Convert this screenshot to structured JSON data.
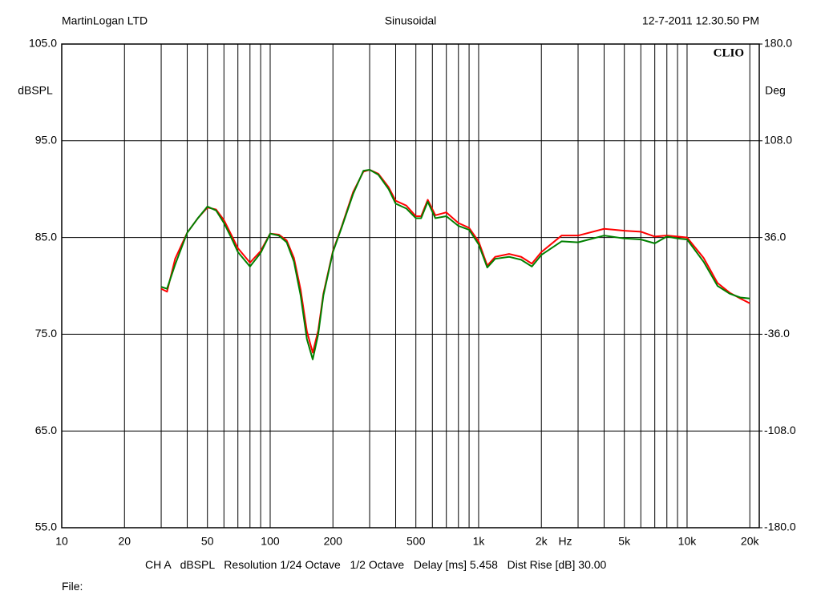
{
  "chart_data": {
    "type": "line",
    "header_left": "MartinLogan LTD",
    "header_center": "Sinusoidal",
    "header_right": "12-7-2011 12.30.50 PM",
    "brand": "CLIO",
    "ylabel": "dBSPL",
    "y2label": "Deg",
    "xunit": "Hz",
    "footer": "CH A   dBSPL   Resolution 1/24 Octave   1/2 Octave   Delay [ms] 5.458   Dist Rise [dB] 30.00",
    "file_label": "File:",
    "log_x": true,
    "grid": true,
    "xlim": [
      10,
      22200
    ],
    "xticks": [
      10,
      20,
      50,
      100,
      200,
      500,
      {
        "value": 1000,
        "label": "1k"
      },
      {
        "value": 2000,
        "label": "2k"
      },
      {
        "value": 5000,
        "label": "5k"
      },
      {
        "value": 10000,
        "label": "10k"
      },
      {
        "value": 20000,
        "label": "20k"
      }
    ],
    "xgrid": [
      30,
      40,
      60,
      70,
      80,
      90,
      300,
      400,
      600,
      700,
      800,
      900,
      3000,
      4000,
      6000,
      7000,
      8000,
      9000
    ],
    "ylim": [
      55,
      105
    ],
    "yticks": [
      {
        "value": 55,
        "label": "55.0"
      },
      {
        "value": 65,
        "label": "65.0"
      },
      {
        "value": 75,
        "label": "75.0"
      },
      {
        "value": 85,
        "label": "85.0"
      },
      {
        "value": 95,
        "label": "95.0"
      },
      {
        "value": 105,
        "label": "105.0"
      }
    ],
    "y2lim": [
      -180,
      180
    ],
    "y2ticks": [
      {
        "value": -180,
        "label": "-180.0"
      },
      {
        "value": -108,
        "label": "-108.0"
      },
      {
        "value": -36,
        "label": "-36.0"
      },
      {
        "value": 36,
        "label": "36.0"
      },
      {
        "value": 108,
        "label": "108.0"
      },
      {
        "value": 180,
        "label": "180.0"
      }
    ],
    "x": [
      30,
      32,
      35,
      40,
      45,
      50,
      55,
      60,
      65,
      70,
      80,
      90,
      100,
      110,
      120,
      130,
      140,
      150,
      160,
      170,
      180,
      200,
      220,
      250,
      280,
      300,
      330,
      370,
      400,
      450,
      500,
      530,
      570,
      620,
      700,
      800,
      900,
      1000,
      1100,
      1200,
      1400,
      1600,
      1800,
      2000,
      2500,
      3000,
      4000,
      5000,
      6000,
      7000,
      8000,
      9000,
      10000,
      12000,
      14000,
      16000,
      18000,
      20000
    ],
    "series": [
      {
        "color": "#ff0000",
        "values": [
          79.7,
          79.4,
          82.8,
          85.5,
          87.0,
          88.1,
          87.9,
          86.8,
          85.3,
          83.9,
          82.4,
          83.6,
          85.4,
          85.3,
          84.7,
          82.9,
          79.6,
          75.3,
          73.1,
          75.4,
          79.2,
          83.6,
          86.1,
          89.7,
          91.8,
          92.0,
          91.6,
          90.2,
          88.8,
          88.3,
          87.2,
          87.2,
          88.9,
          87.3,
          87.6,
          86.5,
          86.0,
          84.6,
          82.1,
          83.0,
          83.3,
          83.0,
          82.3,
          83.5,
          85.2,
          85.2,
          85.9,
          85.7,
          85.6,
          85.1,
          85.2,
          85.1,
          85.0,
          82.9,
          80.3,
          79.3,
          78.7,
          78.2
        ]
      },
      {
        "color": "#008000",
        "values": [
          79.9,
          79.7,
          82.2,
          85.5,
          87.0,
          88.2,
          87.8,
          86.5,
          85.0,
          83.5,
          82.0,
          83.4,
          85.4,
          85.2,
          84.5,
          82.5,
          79.0,
          74.5,
          72.4,
          75.0,
          79.0,
          83.5,
          86.0,
          89.5,
          91.9,
          92.0,
          91.5,
          90.0,
          88.5,
          88.0,
          87.0,
          87.0,
          88.7,
          87.0,
          87.2,
          86.2,
          85.8,
          84.3,
          81.9,
          82.8,
          83.0,
          82.7,
          82.0,
          83.2,
          84.6,
          84.5,
          85.2,
          84.9,
          84.8,
          84.4,
          85.1,
          84.9,
          84.8,
          82.5,
          80.0,
          79.2,
          78.8,
          78.7
        ]
      }
    ]
  }
}
